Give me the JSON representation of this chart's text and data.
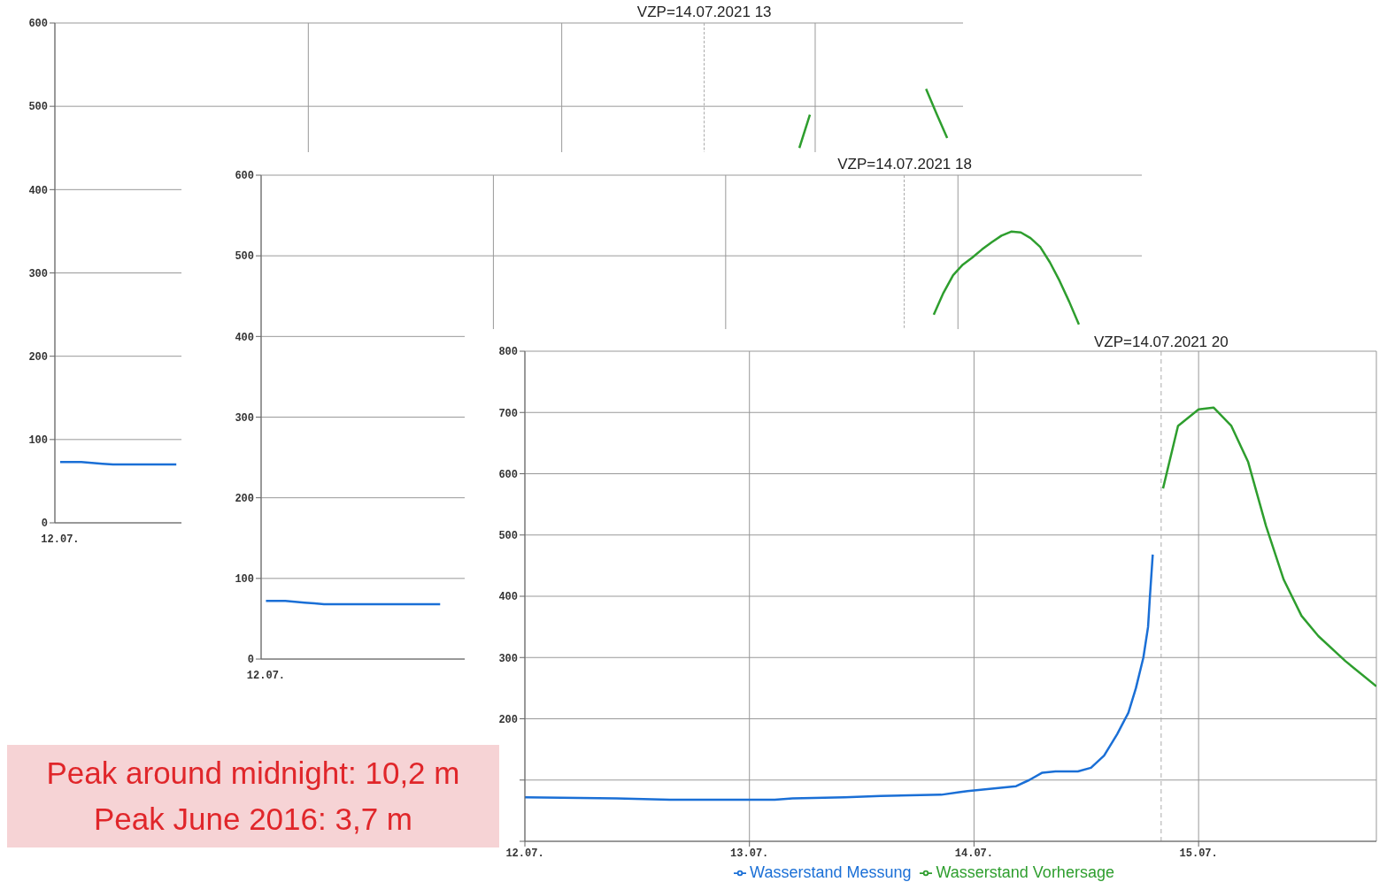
{
  "chart_data": [
    {
      "type": "line",
      "categories": [
        null,
        null,
        null,
        null,
        null,
        null,
        null,
        null,
        null,
        null,
        null,
        null,
        null,
        null,
        null,
        null,
        null,
        null,
        null,
        null,
        null,
        null,
        null,
        null,
        null,
        null,
        null,
        null,
        null,
        null,
        null,
        null,
        null,
        null,
        null,
        null,
        null,
        null,
        null,
        null,
        null,
        null,
        null,
        null,
        null,
        null,
        null,
        null,
        null,
        null,
        null,
        null,
        null,
        null,
        null,
        null,
        null,
        null,
        null,
        null,
        null,
        null,
        null,
        null,
        null,
        null,
        null,
        null,
        null,
        null,
        null,
        null,
        null,
        null,
        null,
        null,
        null,
        null,
        null,
        null,
        null,
        null,
        null,
        null,
        null,
        null
      ],
      "ylim": [
        0,
        600
      ],
      "yticks": [
        0,
        100,
        200,
        300,
        400,
        500,
        600
      ],
      "grid": true,
      "legend": false,
      "annotations": [
        "12.07.",
        "VZP=14.07.2021 13"
      ],
      "series": [
        {
          "color": "#1a6fd6",
          "values": [
            73,
            73,
            73,
            72,
            71,
            70,
            70,
            70,
            70,
            70,
            70,
            70,
            null,
            null,
            null,
            null,
            null,
            null,
            null,
            null,
            null,
            null,
            null,
            null,
            null,
            null,
            null,
            null,
            null,
            null,
            null,
            null,
            null,
            null,
            null,
            null,
            null,
            null,
            null,
            null,
            null,
            null,
            null,
            null,
            null,
            null,
            null,
            null,
            null,
            null,
            null,
            null,
            null,
            null,
            null,
            null,
            null,
            null,
            null,
            null,
            null,
            null,
            null,
            null,
            null,
            null,
            null,
            null,
            null,
            null,
            null,
            null,
            null,
            null,
            null,
            null,
            null,
            null,
            null,
            null,
            null,
            null,
            null,
            null,
            null,
            null
          ]
        },
        {
          "color": "#2e9e2e",
          "values": [
            null,
            null,
            null,
            null,
            null,
            null,
            null,
            null,
            null,
            null,
            null,
            null,
            null,
            null,
            null,
            null,
            null,
            null,
            null,
            null,
            null,
            null,
            null,
            null,
            null,
            null,
            null,
            null,
            null,
            null,
            null,
            null,
            null,
            null,
            null,
            null,
            null,
            null,
            null,
            null,
            null,
            null,
            null,
            null,
            null,
            null,
            null,
            null,
            null,
            null,
            null,
            null,
            null,
            null,
            null,
            null,
            null,
            null,
            null,
            null,
            null,
            null,
            null,
            null,
            null,
            null,
            null,
            null,
            null,
            null,
            450,
            490,
            null,
            null,
            null,
            null,
            null,
            null,
            null,
            null,
            null,
            null,
            521,
            491,
            462,
            null
          ]
        }
      ]
    },
    {
      "type": "line",
      "categories": [
        null,
        null,
        null,
        null,
        null,
        null,
        null,
        null,
        null,
        null,
        null,
        null,
        null,
        null,
        null,
        null,
        null,
        null,
        null,
        null,
        null,
        null,
        null,
        null,
        null,
        null,
        null,
        null,
        null,
        null,
        null,
        null,
        null,
        null,
        null,
        null,
        null,
        null,
        null,
        null,
        null,
        null,
        null,
        null,
        null,
        null,
        null,
        null,
        null,
        null,
        null,
        null,
        null,
        null,
        null,
        null,
        null,
        null,
        null,
        null,
        null,
        null,
        null,
        null,
        null,
        null,
        null,
        null,
        null,
        null,
        null,
        null,
        null,
        null,
        null,
        null,
        null,
        null,
        null,
        null,
        null,
        null,
        null,
        null,
        null,
        null,
        null,
        null,
        null,
        null,
        null
      ],
      "ylim": [
        0,
        600
      ],
      "yticks": [
        0,
        100,
        200,
        300,
        400,
        500,
        600
      ],
      "grid": true,
      "legend": false,
      "annotations": [
        "12.07.",
        "VZP=14.07.2021 18"
      ],
      "series": [
        {
          "color": "#1a6fd6",
          "values": [
            72,
            72,
            72,
            71,
            70,
            69,
            68,
            68,
            68,
            68,
            68,
            68,
            68,
            68,
            68,
            68,
            68,
            68,
            68,
            null,
            null,
            null,
            null,
            null,
            null,
            null,
            null,
            null,
            null,
            null,
            null,
            null,
            null,
            null,
            null,
            null,
            null,
            null,
            null,
            null,
            null,
            null,
            null,
            null,
            null,
            null,
            null,
            null,
            null,
            null,
            null,
            null,
            null,
            null,
            null,
            null,
            null,
            null,
            null,
            null,
            null,
            null,
            null,
            null,
            null,
            null,
            null,
            null,
            null,
            null,
            null,
            null,
            null,
            null,
            null,
            null,
            null,
            null,
            null,
            null,
            null,
            null,
            null,
            null,
            null,
            null,
            null,
            null,
            null,
            null,
            null
          ]
        },
        {
          "color": "#2e9e2e",
          "values": [
            null,
            null,
            null,
            null,
            null,
            null,
            null,
            null,
            null,
            null,
            null,
            null,
            null,
            null,
            null,
            null,
            null,
            null,
            null,
            null,
            null,
            null,
            null,
            null,
            null,
            null,
            null,
            null,
            null,
            null,
            null,
            null,
            null,
            null,
            null,
            null,
            null,
            null,
            null,
            null,
            null,
            null,
            null,
            null,
            null,
            null,
            null,
            null,
            null,
            null,
            null,
            null,
            null,
            null,
            null,
            null,
            null,
            null,
            null,
            null,
            null,
            null,
            null,
            null,
            null,
            null,
            null,
            null,
            null,
            427,
            454,
            476,
            489,
            498,
            508,
            517,
            525,
            530,
            529,
            522,
            511,
            492,
            469,
            443,
            415,
            null,
            null,
            null,
            null,
            null,
            null
          ]
        }
      ]
    },
    {
      "type": "line",
      "xlim": [
        "2021-07-12",
        "2021-07-15T19:00"
      ],
      "ylim": [
        0,
        800
      ],
      "yticks": [
        {
          "value": 0,
          "label": null
        },
        {
          "value": 100,
          "label": null
        },
        200,
        300,
        400,
        500,
        600,
        700,
        800
      ],
      "xticks": [
        {
          "value": "2021-07-12",
          "label": "12.07."
        },
        {
          "value": "2021-07-13",
          "label": "13.07."
        },
        {
          "value": "2021-07-14",
          "label": "14.07."
        },
        {
          "value": "2021-07-15",
          "label": "15.07."
        }
      ],
      "grid": true,
      "legend": "bottom",
      "ref_lines": [
        {
          "axis": "x",
          "value": "2021-07-14T20:00",
          "label": "VZP=14.07.2021 20",
          "color": "#aaaaaa",
          "line_style": "dashed"
        }
      ],
      "annotations": [
        "Peak around midnight: 10,2 m",
        "Peak June 2016: 3,7 m"
      ],
      "series": [
        {
          "name": "Wasserstand Messung",
          "color": "#1a6fd6",
          "x": [
            "2021-07-12T00:00",
            "2021-07-12T09:48",
            "2021-07-12T15:30",
            "2021-07-13T02:42",
            "2021-07-13T04:36",
            "2021-07-13T10:12",
            "2021-07-13T14:00",
            "2021-07-13T20:30",
            "2021-07-13T22:24",
            "2021-07-13T23:18",
            "2021-07-14T04:30",
            "2021-07-14T05:54",
            "2021-07-14T07:18",
            "2021-07-14T08:42",
            "2021-07-14T11:06",
            "2021-07-14T12:30",
            "2021-07-14T13:54",
            "2021-07-14T15:18",
            "2021-07-14T16:30",
            "2021-07-14T17:18",
            "2021-07-14T18:06",
            "2021-07-14T18:36",
            "2021-07-14T18:48",
            "2021-07-14T19:06"
          ],
          "values": [
            72,
            70,
            68,
            68,
            70,
            72,
            74,
            76,
            80,
            82,
            90,
            100,
            112,
            114,
            114,
            120,
            140,
            175,
            210,
            250,
            300,
            350,
            400,
            468
          ]
        },
        {
          "name": "Wasserstand Vorhersage",
          "color": "#2e9e2e",
          "x": [
            "2021-07-14T20:12",
            "2021-07-14T21:48",
            "2021-07-15T00:00",
            "2021-07-15T01:36",
            "2021-07-15T03:30",
            "2021-07-15T05:18",
            "2021-07-15T07:12",
            "2021-07-15T09:06",
            "2021-07-15T11:00",
            "2021-07-15T12:48",
            "2021-07-15T15:42",
            "2021-07-15T19:00"
          ],
          "values": [
            576,
            678,
            705,
            708,
            678,
            619,
            515,
            427,
            368,
            335,
            294,
            253
          ]
        }
      ]
    }
  ]
}
